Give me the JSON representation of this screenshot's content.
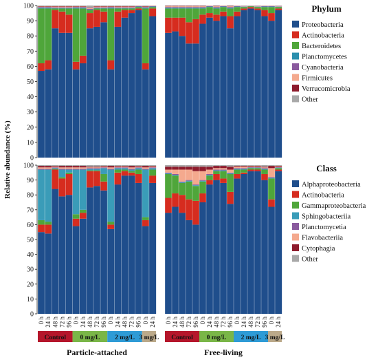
{
  "figure": {
    "ylabel": "Relative abundance (%)",
    "yticks": [
      0,
      10,
      20,
      30,
      40,
      50,
      60,
      70,
      80,
      90,
      100
    ],
    "columns": [
      "Particle-attached",
      "Free-living"
    ],
    "sample_labels": [
      "0 h",
      "24 h",
      "48 h",
      "72 h",
      "96 h",
      "0 h",
      "24 h",
      "48 h",
      "72 h",
      "96 h",
      "0 h",
      "24 h",
      "48 h",
      "72 h",
      "96 h",
      "0 h",
      "24 h"
    ],
    "groups": [
      {
        "label": "Control",
        "color": "#B5162B",
        "text_color": "#111111",
        "span": [
          0,
          4
        ]
      },
      {
        "label": "0 mg/L",
        "color": "#7AB648",
        "text_color": "#111111",
        "span": [
          5,
          9
        ]
      },
      {
        "label": "2 mg/L",
        "color": "#2E9BD6",
        "text_color": "#111111",
        "span": [
          10,
          14
        ]
      },
      {
        "label": "3 mg/L",
        "color": "#BBA98A",
        "text_color": "#111111",
        "span": [
          15,
          16
        ]
      }
    ]
  },
  "chart_data": [
    {
      "type": "bar",
      "stacked": true,
      "panel": "Particle-attached",
      "level": "Phylum",
      "ylim": [
        0,
        100
      ],
      "categories": [
        "0 h",
        "24 h",
        "48 h",
        "72 h",
        "96 h",
        "0 h",
        "24 h",
        "48 h",
        "72 h",
        "96 h",
        "0 h",
        "24 h",
        "48 h",
        "72 h",
        "96 h",
        "0 h",
        "24 h"
      ],
      "series": [
        {
          "name": "Proteobacteria",
          "color": "#1F4E8C",
          "values": [
            57,
            58,
            85,
            82,
            82,
            58,
            62,
            85,
            86,
            89,
            58,
            86,
            92,
            95,
            97,
            58,
            93
          ]
        },
        {
          "name": "Actinobacteria",
          "color": "#D62C1F",
          "values": [
            5,
            6,
            12,
            14,
            12,
            5,
            5,
            10,
            11,
            7,
            6,
            10,
            5,
            2,
            1,
            4,
            5
          ]
        },
        {
          "name": "Bacteroidetes",
          "color": "#4FA63A",
          "values": [
            36,
            34,
            1,
            2,
            4,
            35,
            31,
            2,
            1,
            2,
            34,
            2,
            1,
            1,
            1,
            36,
            1
          ]
        },
        {
          "name": "Planctomycetes",
          "color": "#2B8FAE",
          "values": [
            0.5,
            0.5,
            0.3,
            0.3,
            0.3,
            0.5,
            0.5,
            0.3,
            0.3,
            0.3,
            0.5,
            0.3,
            0.3,
            0.3,
            0.3,
            0.5,
            0.3
          ]
        },
        {
          "name": "Cyanobacteria",
          "color": "#8A5A9E",
          "values": [
            0.5,
            0.5,
            0.5,
            0.5,
            0.5,
            0.5,
            0.5,
            0.5,
            0.5,
            0.5,
            0.5,
            0.5,
            0.5,
            0.5,
            0.3,
            0.5,
            0.3
          ]
        },
        {
          "name": "Firmicutes",
          "color": "#F4A98E",
          "values": [
            0.3,
            0.3,
            0.5,
            0.5,
            0.5,
            0.3,
            0.3,
            0.5,
            0.5,
            0.5,
            0.3,
            0.5,
            0.5,
            0.5,
            0.2,
            0.3,
            0.2
          ]
        },
        {
          "name": "Verrucomicrobia",
          "color": "#8E1B2C",
          "values": [
            0.3,
            0.3,
            0.3,
            0.3,
            0.3,
            0.3,
            0.3,
            0.3,
            0.3,
            0.3,
            0.3,
            0.3,
            0.3,
            0.3,
            0.1,
            0.3,
            0.1
          ]
        },
        {
          "name": "Other",
          "color": "#A8A8A8",
          "values": [
            0.4,
            0.4,
            0.4,
            0.4,
            0.4,
            0.4,
            0.4,
            0.4,
            0.4,
            0.4,
            0.4,
            0.4,
            0.4,
            0.4,
            0.1,
            0.4,
            0.1
          ]
        }
      ]
    },
    {
      "type": "bar",
      "stacked": true,
      "panel": "Free-living",
      "level": "Phylum",
      "ylim": [
        0,
        100
      ],
      "categories": [
        "0 h",
        "24 h",
        "48 h",
        "72 h",
        "96 h",
        "0 h",
        "24 h",
        "48 h",
        "72 h",
        "96 h",
        "0 h",
        "24 h",
        "48 h",
        "72 h",
        "96 h",
        "0 h",
        "24 h"
      ],
      "series": [
        {
          "name": "Proteobacteria",
          "color": "#1F4E8C",
          "values": [
            82,
            83,
            80,
            75,
            75,
            88,
            92,
            90,
            93,
            85,
            93,
            97,
            98,
            97,
            93,
            90,
            97
          ]
        },
        {
          "name": "Actinobacteria",
          "color": "#D62C1F",
          "values": [
            10,
            9,
            12,
            14,
            16,
            6,
            3,
            4,
            3,
            8,
            3,
            1,
            1,
            1,
            4,
            5,
            1
          ]
        },
        {
          "name": "Bacteroidetes",
          "color": "#4FA63A",
          "values": [
            6,
            6,
            6,
            9,
            7,
            4,
            4,
            4,
            3,
            5,
            3,
            1,
            0.5,
            1,
            2,
            4,
            1
          ]
        },
        {
          "name": "Planctomycetes",
          "color": "#2B8FAE",
          "values": [
            0.5,
            0.5,
            0.5,
            0.5,
            0.5,
            0.5,
            0.3,
            0.5,
            0.3,
            0.5,
            0.3,
            0.2,
            0.1,
            0.2,
            0.3,
            0.3,
            0.2
          ]
        },
        {
          "name": "Cyanobacteria",
          "color": "#8A5A9E",
          "values": [
            0.5,
            0.5,
            0.5,
            0.5,
            0.5,
            0.5,
            0.3,
            0.5,
            0.3,
            0.5,
            0.3,
            0.2,
            0.1,
            0.2,
            0.3,
            0.3,
            0.2
          ]
        },
        {
          "name": "Firmicutes",
          "color": "#F4A98E",
          "values": [
            0.5,
            0.5,
            0.5,
            0.5,
            0.5,
            0.5,
            0.2,
            0.5,
            0.2,
            0.5,
            0.2,
            0.2,
            0.1,
            0.2,
            0.2,
            0.2,
            0.2
          ]
        },
        {
          "name": "Verrucomicrobia",
          "color": "#8E1B2C",
          "values": [
            0.3,
            0.3,
            0.3,
            0.3,
            0.3,
            0.3,
            0.1,
            0.3,
            0.1,
            0.3,
            0.1,
            0.1,
            0.1,
            0.1,
            0.1,
            0.1,
            0.1
          ]
        },
        {
          "name": "Other",
          "color": "#A8A8A8",
          "values": [
            0.2,
            0.2,
            0.2,
            0.2,
            0.2,
            0.2,
            0.1,
            0.2,
            0.1,
            0.2,
            0.1,
            0.1,
            0.1,
            0.1,
            0.1,
            0.1,
            0.1
          ]
        }
      ]
    },
    {
      "type": "bar",
      "stacked": true,
      "panel": "Particle-attached",
      "level": "Class",
      "ylim": [
        0,
        100
      ],
      "categories": [
        "0 h",
        "24 h",
        "48 h",
        "72 h",
        "96 h",
        "0 h",
        "24 h",
        "48 h",
        "72 h",
        "96 h",
        "0 h",
        "24 h",
        "48 h",
        "72 h",
        "96 h",
        "0 h",
        "24 h"
      ],
      "series": [
        {
          "name": "Alphaproteobacteria",
          "color": "#1F4E8C",
          "values": [
            55,
            54,
            84,
            79,
            80,
            59,
            64,
            85,
            86,
            83,
            57,
            87,
            93,
            93,
            88,
            59,
            88
          ]
        },
        {
          "name": "Actinobacteria",
          "color": "#D62C1F",
          "values": [
            5,
            6,
            13,
            12,
            14,
            5,
            4,
            11,
            10,
            6,
            3,
            8,
            3,
            2,
            6,
            4,
            5
          ]
        },
        {
          "name": "Gammaproteobacteria",
          "color": "#4FA63A",
          "values": [
            3,
            2,
            0.5,
            1,
            1,
            3,
            2,
            0.5,
            0.5,
            5,
            2,
            2,
            1,
            1,
            3,
            2,
            4
          ]
        },
        {
          "name": "Sphingobacteriia",
          "color": "#3A9CB8",
          "values": [
            34,
            35,
            0.5,
            5,
            2,
            30,
            27,
            1,
            1,
            4,
            35,
            1,
            1,
            1,
            1,
            32,
            1
          ]
        },
        {
          "name": "Planctomycetia",
          "color": "#8A5A9E",
          "values": [
            0.5,
            0.5,
            0.5,
            0.5,
            0.5,
            0.5,
            0.5,
            0.5,
            0.5,
            0.5,
            0.5,
            0.5,
            0.5,
            0.5,
            0.5,
            0.5,
            0.5
          ]
        },
        {
          "name": "Flavobacteriia",
          "color": "#F4A98E",
          "values": [
            1,
            1,
            0.5,
            1,
            1,
            1,
            1,
            0.5,
            0.5,
            0.5,
            1,
            0.5,
            0.5,
            1,
            0.5,
            1,
            0.5
          ]
        },
        {
          "name": "Cytophagia",
          "color": "#8E1B2C",
          "values": [
            1,
            1,
            0.5,
            1,
            1,
            1,
            1,
            0.5,
            0.5,
            0.5,
            1,
            0.5,
            0.5,
            1,
            0.5,
            1,
            0.5
          ]
        },
        {
          "name": "Other",
          "color": "#A8A8A8",
          "values": [
            0.5,
            0.5,
            0.5,
            0.5,
            0.5,
            0.5,
            0.5,
            1,
            1,
            0.5,
            0.5,
            0.5,
            0.5,
            0.5,
            0.5,
            0.5,
            0.5
          ]
        }
      ]
    },
    {
      "type": "bar",
      "stacked": true,
      "panel": "Free-living",
      "level": "Class",
      "ylim": [
        0,
        100
      ],
      "categories": [
        "0 h",
        "24 h",
        "48 h",
        "72 h",
        "96 h",
        "0 h",
        "24 h",
        "48 h",
        "72 h",
        "96 h",
        "0 h",
        "24 h",
        "48 h",
        "72 h",
        "96 h",
        "0 h",
        "24 h"
      ],
      "series": [
        {
          "name": "Alphaproteobacteria",
          "color": "#1F4E8C",
          "values": [
            68,
            72,
            68,
            63,
            60,
            75,
            87,
            90,
            88,
            74,
            91,
            94,
            96,
            96,
            90,
            72,
            96
          ]
        },
        {
          "name": "Actinobacteria",
          "color": "#D62C1F",
          "values": [
            10,
            9,
            12,
            14,
            16,
            6,
            3,
            4,
            3,
            8,
            3,
            1,
            1,
            1,
            4,
            5,
            1
          ]
        },
        {
          "name": "Gammaproteobacteria",
          "color": "#4FA63A",
          "values": [
            16,
            12,
            8,
            12,
            10,
            8,
            3,
            2,
            5,
            12,
            3,
            2,
            1,
            1,
            3,
            14,
            1
          ]
        },
        {
          "name": "Sphingobacteriia",
          "color": "#3A9CB8",
          "values": [
            0.5,
            0.5,
            0.5,
            0.5,
            0.5,
            0.5,
            0.5,
            0.5,
            0.5,
            0.5,
            0.5,
            0.5,
            0.3,
            0.3,
            0.5,
            0.5,
            0.3
          ]
        },
        {
          "name": "Planctomycetia",
          "color": "#8A5A9E",
          "values": [
            0.5,
            0.5,
            0.5,
            0.5,
            0.5,
            0.5,
            0.5,
            0.5,
            0.5,
            0.5,
            0.5,
            0.5,
            0.3,
            0.3,
            0.5,
            0.5,
            0.3
          ]
        },
        {
          "name": "Flavobacteriia",
          "color": "#F4A98E",
          "values": [
            2,
            3,
            8,
            7,
            9,
            6,
            3,
            1,
            1,
            2,
            1,
            1,
            0.5,
            0.5,
            0.5,
            6,
            0.5
          ]
        },
        {
          "name": "Cytophagia",
          "color": "#8E1B2C",
          "values": [
            2,
            2,
            2,
            2,
            3,
            3,
            2,
            1.5,
            1.5,
            2,
            0.5,
            0.5,
            0.5,
            0.5,
            0.5,
            1.5,
            0.5
          ]
        },
        {
          "name": "Other",
          "color": "#A8A8A8",
          "values": [
            1,
            1,
            1,
            1,
            1,
            1,
            1,
            0.5,
            0.5,
            1,
            0.5,
            0.5,
            0.4,
            0.4,
            0.5,
            0.5,
            0.4
          ]
        }
      ]
    }
  ],
  "legends": [
    {
      "title": "Phylum",
      "items": [
        "Proteobacteria",
        "Actinobacteria",
        "Bacteroidetes",
        "Planctomycetes",
        "Cyanobacteria",
        "Firmicutes",
        "Verrucomicrobia",
        "Other"
      ],
      "colors": [
        "#1F4E8C",
        "#D62C1F",
        "#4FA63A",
        "#2B8FAE",
        "#8A5A9E",
        "#F4A98E",
        "#8E1B2C",
        "#A8A8A8"
      ]
    },
    {
      "title": "Class",
      "items": [
        "Alphaproteobacteria",
        "Actinobacteria",
        "Gammaproteobacteria",
        "Sphingobacteriia",
        "Planctomycetia",
        "Flavobacteriia",
        "Cytophagia",
        "Other"
      ],
      "colors": [
        "#1F4E8C",
        "#D62C1F",
        "#4FA63A",
        "#3A9CB8",
        "#8A5A9E",
        "#F4A98E",
        "#8E1B2C",
        "#A8A8A8"
      ]
    }
  ]
}
